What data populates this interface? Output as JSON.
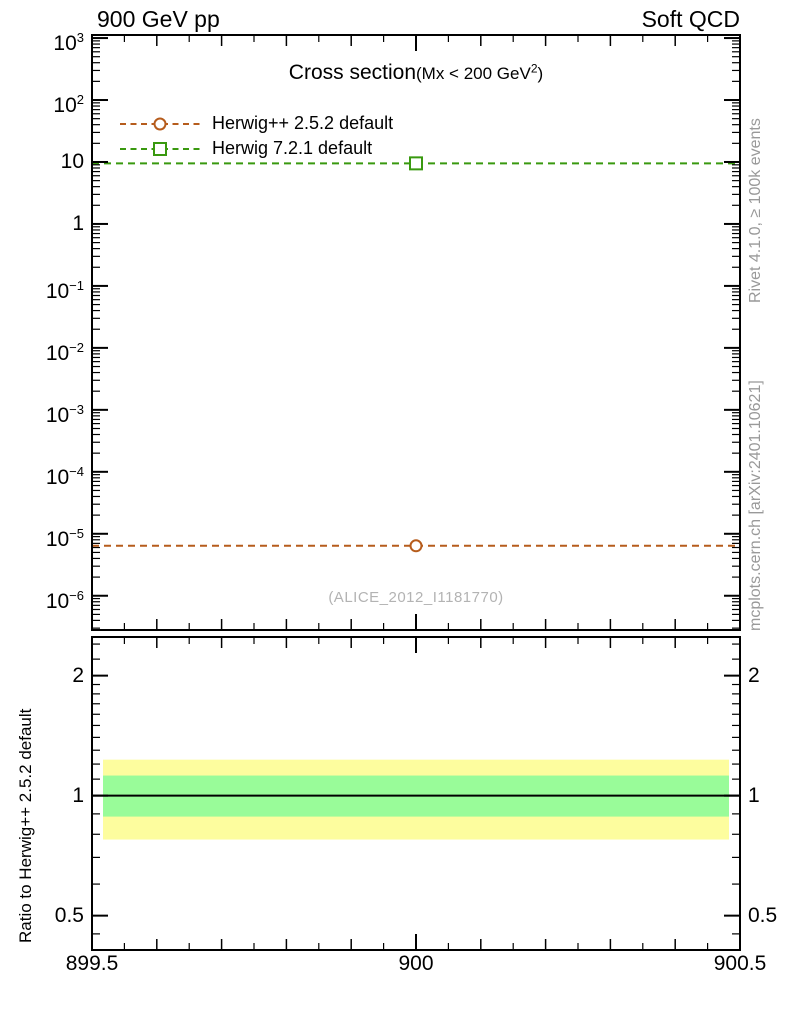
{
  "header": {
    "left": "900 GeV pp",
    "right": "Soft QCD"
  },
  "title": {
    "main": "Cross section",
    "sub_pre": "(Mx < 200 GeV",
    "sub_sup": "2",
    "sub_post": ")"
  },
  "legend": {
    "items": [
      {
        "label": "Herwig++ 2.5.2 default",
        "color": "#b65c1c",
        "marker": "circle"
      },
      {
        "label": "Herwig 7.2.1 default",
        "color": "#39990f",
        "marker": "square"
      }
    ]
  },
  "watermark": "(ALICE_2012_I1181770)",
  "side_notes": {
    "top": "Rivet 4.1.0, ≥ 100k events",
    "bottom": "mcplots.cern.ch [arXiv:2401.10621]"
  },
  "colors": {
    "band_yellow": "#fdfd9e",
    "band_green": "#99fc99",
    "frame": "#000000",
    "note_gray": "#999999",
    "watermark_gray": "#b3b3b3",
    "herwig_252": "#b65c1c",
    "herwig_721": "#39990f"
  },
  "chart_data": {
    "type": "line",
    "title": "Cross section (Mx < 200 GeV^2)",
    "beam": "900 GeV pp",
    "process_group": "Soft QCD",
    "analysis": "ALICE_2012_I1181770",
    "xlim": [
      899.5,
      900.5
    ],
    "x_major_ticks": [
      899.5,
      900,
      900.5
    ],
    "x_tick_labels": [
      "899.5",
      "900",
      "900.5"
    ],
    "x_medium_step": 0.1,
    "x_minor_step": 0.05,
    "main_panel": {
      "ylog": true,
      "ylim": [
        2.8e-07,
        1120
      ],
      "y_major_ticks": [
        {
          "v": 1000,
          "base": "10",
          "exp": "3"
        },
        {
          "v": 100,
          "base": "10",
          "exp": "2"
        },
        {
          "v": 10,
          "base": "10",
          "exp": ""
        },
        {
          "v": 1,
          "base": "1",
          "exp": ""
        },
        {
          "v": 0.1,
          "base": "10",
          "exp": "−1"
        },
        {
          "v": 0.01,
          "base": "10",
          "exp": "−2"
        },
        {
          "v": 0.001,
          "base": "10",
          "exp": "−3"
        },
        {
          "v": 0.0001,
          "base": "10",
          "exp": "−4"
        },
        {
          "v": 1e-05,
          "base": "10",
          "exp": "−5"
        },
        {
          "v": 1e-06,
          "base": "10",
          "exp": "−6"
        }
      ],
      "series": [
        {
          "name": "Herwig++ 2.5.2 default",
          "x": [
            900
          ],
          "values": [
            6.4e-06
          ],
          "color": "#b65c1c",
          "marker": "circle",
          "line": "dashed"
        },
        {
          "name": "Herwig 7.2.1 default",
          "x": [
            900
          ],
          "values": [
            9.5
          ],
          "color": "#39990f",
          "marker": "square",
          "line": "dashed"
        }
      ]
    },
    "ratio_panel": {
      "ylabel": "Ratio to Herwig++ 2.5.2 default",
      "ylog": true,
      "ylim": [
        0.41,
        2.5
      ],
      "y_major_ticks": [
        {
          "v": 2,
          "label": "2"
        },
        {
          "v": 1,
          "label": "1"
        },
        {
          "v": 0.5,
          "label": "0.5"
        }
      ],
      "y_minor_ticks": [
        0.45,
        0.6,
        0.7,
        0.8,
        0.9,
        1.1,
        1.2,
        1.3,
        1.4,
        1.5,
        1.6,
        1.7,
        1.8,
        1.9,
        2.2,
        2.4
      ],
      "reference_line": 1.0,
      "bands": [
        {
          "name": "total-uncertainty-band",
          "color": "#fdfd9e",
          "from": 0.776,
          "to": 1.231
        },
        {
          "name": "stat-uncertainty-band",
          "color": "#99fc99",
          "from": 0.886,
          "to": 1.123
        }
      ]
    }
  }
}
